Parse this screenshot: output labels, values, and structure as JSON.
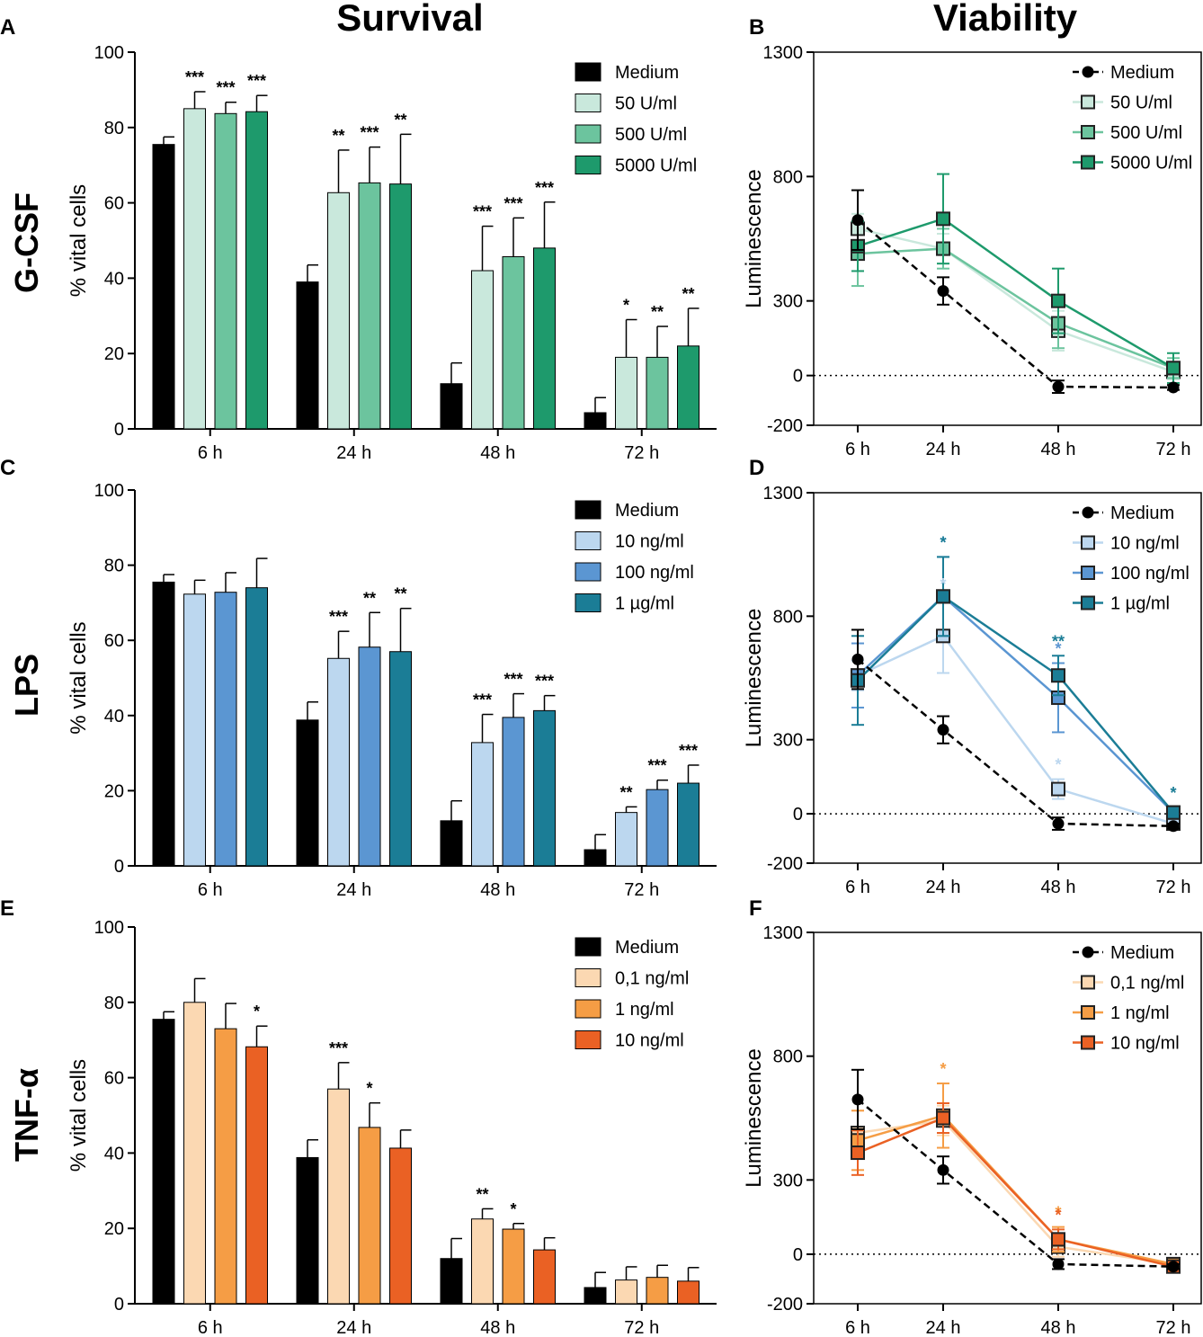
{
  "column_titles": {
    "survival": "Survival",
    "viability": "Viability"
  },
  "row_titles": [
    "G-CSF",
    "LPS",
    "TNF-α"
  ],
  "chart_data": [
    {
      "panel": "A",
      "type": "bar",
      "title": "Survival",
      "row": "G-CSF",
      "ylabel": "% vital cells",
      "ylim": [
        0,
        100
      ],
      "yticks": [
        0,
        20,
        40,
        60,
        80,
        100
      ],
      "categories": [
        "6 h",
        "24 h",
        "48 h",
        "72 h"
      ],
      "series": [
        {
          "name": "Medium",
          "color": "#000000",
          "values": [
            75.5,
            39,
            12,
            4.3
          ],
          "err": [
            2,
            4.5,
            5.5,
            4
          ],
          "sig": [
            "",
            "",
            "",
            ""
          ]
        },
        {
          "name": "50 U/ml",
          "color": "#c9e8dc",
          "values": [
            85,
            62.7,
            42,
            19
          ],
          "err": [
            4.5,
            11.3,
            11.8,
            10
          ],
          "sig": [
            "***",
            "**",
            "***",
            "*"
          ]
        },
        {
          "name": "500 U/ml",
          "color": "#6cc49e",
          "values": [
            83.7,
            65.3,
            45.7,
            19
          ],
          "err": [
            3,
            9.5,
            10.3,
            8.2
          ],
          "sig": [
            "***",
            "***",
            "***",
            "**"
          ]
        },
        {
          "name": "5000 U/ml",
          "color": "#1e9a6c",
          "values": [
            84.2,
            65,
            48,
            22
          ],
          "err": [
            4.3,
            13.2,
            12.2,
            10
          ],
          "sig": [
            "***",
            "**",
            "***",
            "**"
          ]
        }
      ]
    },
    {
      "panel": "B",
      "type": "line",
      "title": "Viability",
      "row": "G-CSF",
      "ylabel": "Luminescence",
      "ylim": [
        -200,
        1300
      ],
      "yticks": [
        -200,
        0,
        300,
        800,
        1300
      ],
      "categories": [
        "6 h",
        "24 h",
        "48 h",
        "72 h"
      ],
      "series": [
        {
          "name": "Medium",
          "color": "#000000",
          "marker": "circle",
          "dashed": true,
          "values": [
            625,
            340,
            -45,
            -48
          ],
          "err": [
            120,
            55,
            25,
            10
          ],
          "sig": [
            "",
            "",
            "",
            ""
          ]
        },
        {
          "name": "50 U/ml",
          "color": "#c9e8dc",
          "marker": "square",
          "dashed": false,
          "values": [
            590,
            510,
            180,
            15
          ],
          "err": [
            60,
            60,
            80,
            30
          ],
          "sig": [
            "",
            "",
            "",
            ""
          ]
        },
        {
          "name": "500 U/ml",
          "color": "#6cc49e",
          "marker": "square",
          "dashed": false,
          "values": [
            490,
            510,
            210,
            30
          ],
          "err": [
            130,
            80,
            100,
            40
          ],
          "sig": [
            "",
            "",
            "",
            ""
          ]
        },
        {
          "name": "5000 U/ml",
          "color": "#1e9a6c",
          "marker": "square",
          "dashed": false,
          "values": [
            520,
            630,
            300,
            30
          ],
          "err": [
            100,
            180,
            130,
            60
          ],
          "sig": [
            "",
            "",
            "",
            ""
          ]
        }
      ]
    },
    {
      "panel": "C",
      "type": "bar",
      "title": "Survival",
      "row": "LPS",
      "ylabel": "% vital cells",
      "ylim": [
        0,
        100
      ],
      "yticks": [
        0,
        20,
        40,
        60,
        80,
        100
      ],
      "categories": [
        "6 h",
        "24 h",
        "48 h",
        "72 h"
      ],
      "series": [
        {
          "name": "Medium",
          "color": "#000000",
          "values": [
            75.5,
            38.8,
            12,
            4.3
          ],
          "err": [
            2,
            4.8,
            5.3,
            4
          ],
          "sig": [
            "",
            "",
            "",
            ""
          ]
        },
        {
          "name": "10 ng/ml",
          "color": "#bcd7ef",
          "values": [
            72.3,
            55.2,
            32.8,
            14.2
          ],
          "err": [
            3.7,
            7.2,
            7.5,
            1.5
          ],
          "sig": [
            "",
            "***",
            "***",
            "**"
          ]
        },
        {
          "name": "100 ng/ml",
          "color": "#5b96d2",
          "values": [
            72.8,
            58.2,
            39.5,
            20.3
          ],
          "err": [
            5.2,
            9.2,
            6.3,
            2.5
          ],
          "sig": [
            "",
            "**",
            "***",
            "***"
          ]
        },
        {
          "name": "1 µg/ml",
          "color": "#1b7d96",
          "values": [
            74,
            57,
            41.3,
            22
          ],
          "err": [
            7.8,
            11.5,
            4,
            4.8
          ],
          "sig": [
            "",
            "**",
            "***",
            "***"
          ]
        }
      ]
    },
    {
      "panel": "D",
      "type": "line",
      "title": "Viability",
      "row": "LPS",
      "ylabel": "Luminescence",
      "ylim": [
        -200,
        1300
      ],
      "yticks": [
        -200,
        0,
        300,
        800,
        1300
      ],
      "categories": [
        "6 h",
        "24 h",
        "48 h",
        "72 h"
      ],
      "series": [
        {
          "name": "Medium",
          "color": "#000000",
          "marker": "circle",
          "dashed": true,
          "values": [
            625,
            340,
            -40,
            -50
          ],
          "err": [
            120,
            55,
            25,
            10
          ],
          "sig": [
            "",
            "",
            "",
            ""
          ]
        },
        {
          "name": "10 ng/ml",
          "color": "#bcd7ef",
          "marker": "square",
          "dashed": false,
          "values": [
            560,
            720,
            100,
            -40
          ],
          "err": [
            60,
            150,
            40,
            15
          ],
          "sig": [
            "",
            "*",
            "*",
            ""
          ]
        },
        {
          "name": "100 ng/ml",
          "color": "#5b96d2",
          "marker": "square",
          "dashed": false,
          "values": [
            560,
            880,
            470,
            5
          ],
          "err": [
            130,
            160,
            140,
            20
          ],
          "sig": [
            "",
            "*",
            "*",
            ""
          ]
        },
        {
          "name": "1 µg/ml",
          "color": "#1b7d96",
          "marker": "square",
          "dashed": false,
          "values": [
            540,
            880,
            560,
            5
          ],
          "err": [
            180,
            160,
            80,
            20
          ],
          "sig": [
            "",
            "*",
            "**",
            "*"
          ]
        }
      ]
    },
    {
      "panel": "E",
      "type": "bar",
      "title": "Survival",
      "row": "TNF-α",
      "ylabel": "% vital cells",
      "ylim": [
        0,
        100
      ],
      "yticks": [
        0,
        20,
        40,
        60,
        80,
        100
      ],
      "categories": [
        "6 h",
        "24 h",
        "48 h",
        "72 h"
      ],
      "series": [
        {
          "name": "Medium",
          "color": "#000000",
          "values": [
            75.5,
            38.8,
            12,
            4.3
          ],
          "err": [
            2,
            4.7,
            5.3,
            4
          ],
          "sig": [
            "",
            "",
            "",
            ""
          ]
        },
        {
          "name": "0,1 ng/ml",
          "color": "#fbd8b2",
          "values": [
            80,
            57,
            22.5,
            6.3
          ],
          "err": [
            6.3,
            7,
            2.7,
            3.5
          ],
          "sig": [
            "",
            "***",
            "**",
            ""
          ]
        },
        {
          "name": "1 ng/ml",
          "color": "#f59d45",
          "values": [
            73,
            46.8,
            19.8,
            7
          ],
          "err": [
            6.7,
            6.5,
            1.5,
            3.2
          ],
          "sig": [
            "",
            "*",
            "*",
            ""
          ]
        },
        {
          "name": "10 ng/ml",
          "color": "#ea6124",
          "values": [
            68.2,
            41.3,
            14.3,
            6
          ],
          "err": [
            5.5,
            4.8,
            3.2,
            3.6
          ],
          "sig": [
            "*",
            "",
            "",
            ""
          ]
        }
      ]
    },
    {
      "panel": "F",
      "type": "line",
      "title": "Viability",
      "row": "TNF-α",
      "ylabel": "Luminescence",
      "ylim": [
        -200,
        1300
      ],
      "yticks": [
        -200,
        0,
        300,
        800,
        1300
      ],
      "categories": [
        "6 h",
        "24 h",
        "48 h",
        "72 h"
      ],
      "series": [
        {
          "name": "Medium",
          "color": "#000000",
          "marker": "circle",
          "dashed": true,
          "values": [
            625,
            340,
            -40,
            -50
          ],
          "err": [
            120,
            55,
            20,
            10
          ],
          "sig": [
            "",
            "",
            "",
            ""
          ]
        },
        {
          "name": "0,1 ng/ml",
          "color": "#fbd8b2",
          "marker": "square",
          "dashed": false,
          "values": [
            490,
            540,
            30,
            -40
          ],
          "err": [
            90,
            60,
            40,
            15
          ],
          "sig": [
            "",
            "",
            "",
            ""
          ]
        },
        {
          "name": "1 ng/ml",
          "color": "#f59d45",
          "marker": "square",
          "dashed": false,
          "values": [
            460,
            560,
            60,
            -40
          ],
          "err": [
            120,
            130,
            50,
            15
          ],
          "sig": [
            "",
            "*",
            "*",
            ""
          ]
        },
        {
          "name": "10 ng/ml",
          "color": "#ea6124",
          "marker": "square",
          "dashed": false,
          "values": [
            410,
            550,
            60,
            -50
          ],
          "err": [
            90,
            60,
            40,
            15
          ],
          "sig": [
            "",
            "",
            "*",
            ""
          ]
        }
      ]
    }
  ]
}
